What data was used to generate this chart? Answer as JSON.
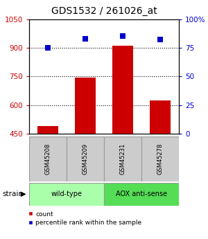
{
  "title": "GDS1532 / 261026_at",
  "samples": [
    "GSM45208",
    "GSM45209",
    "GSM45231",
    "GSM45278"
  ],
  "counts": [
    490,
    745,
    910,
    625
  ],
  "percentiles": [
    75,
    83,
    85,
    82
  ],
  "ylim_left": [
    450,
    1050
  ],
  "ylim_right": [
    0,
    100
  ],
  "yticks_left": [
    450,
    600,
    750,
    900,
    1050
  ],
  "yticks_right": [
    0,
    25,
    50,
    75,
    100
  ],
  "ytick_labels_right": [
    "0",
    "25",
    "50",
    "75",
    "100%"
  ],
  "bar_color": "#cc0000",
  "dot_color": "#0000cc",
  "bar_width": 0.55,
  "gridline_values": [
    600,
    750,
    900
  ],
  "strain_groups": [
    {
      "label": "wild-type",
      "samples": [
        0,
        1
      ],
      "color": "#aaffaa"
    },
    {
      "label": "AOX anti-sense",
      "samples": [
        2,
        3
      ],
      "color": "#55dd55"
    }
  ],
  "strain_label": "strain",
  "legend_count_label": "count",
  "legend_pct_label": "percentile rank within the sample",
  "title_fontsize": 10,
  "axis_label_color_left": "#cc0000",
  "axis_label_color_right": "#0000cc",
  "sample_box_color": "#cccccc",
  "sample_box_edge": "#999999",
  "fig_width": 3.0,
  "fig_height": 3.45,
  "dpi": 100
}
